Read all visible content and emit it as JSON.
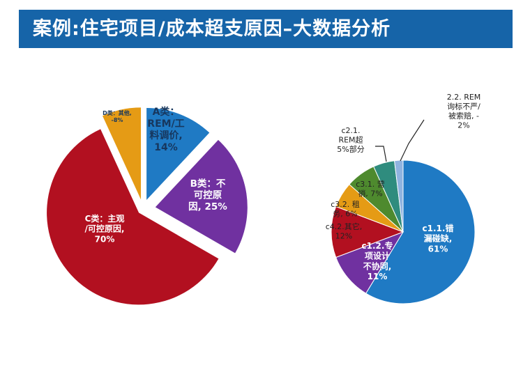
{
  "title": "案例:住宅项目/成本超支原因–大数据分析",
  "colors": {
    "title_bg": "#1664a8",
    "blue": "#1f7ac4",
    "purple": "#7031a0",
    "red": "#b21020",
    "orange": "#e59b15",
    "green": "#4e8a2e",
    "teal": "#2f8c7e",
    "lightblue": "#8fb3e0"
  },
  "chart_data": [
    {
      "type": "pie",
      "title": "",
      "slices": [
        {
          "label_lines": [
            "A类：",
            "REM/工",
            "料调价,",
            "14%"
          ],
          "value": 14,
          "color": "#1f7ac4"
        },
        {
          "label_lines": [
            "B类：不",
            "可控原",
            "因, 25%"
          ],
          "value": 25,
          "color": "#7031a0"
        },
        {
          "label_lines": [
            "C类：主观",
            "/可控原因,",
            "70%"
          ],
          "value": 70,
          "color": "#b21020"
        },
        {
          "label_lines": [
            "D类：其他,",
            "-8%"
          ],
          "value": -8,
          "color": "#e59b15"
        }
      ]
    },
    {
      "type": "pie",
      "title": "",
      "slices": [
        {
          "label_lines": [
            "c1.1.错",
            "漏碰缺,",
            "61%"
          ],
          "value": 61,
          "color": "#1f7ac4"
        },
        {
          "label_lines": [
            "c1.2.专",
            "项设计",
            "不协同,",
            "11%"
          ],
          "value": 11,
          "color": "#7031a0"
        },
        {
          "label_lines": [
            "c4.2.其它,",
            "12%"
          ],
          "value": 12,
          "color": "#b21020"
        },
        {
          "label_lines": [
            "c3.2. 租",
            "务, 6%"
          ],
          "value": 6,
          "color": "#e59b15"
        },
        {
          "label_lines": [
            "c3.1. 营",
            "销, 7%"
          ],
          "value": 7,
          "color": "#4e8a2e"
        },
        {
          "label_lines": [
            "c2.1.",
            "REM超",
            "5%部分"
          ],
          "value": 5,
          "color": "#2f8c7e"
        },
        {
          "label_lines": [
            "2.2. REM",
            "询标不严/",
            "被索赔, -",
            "2%"
          ],
          "value": -2,
          "color": "#8fb3e0"
        }
      ]
    }
  ]
}
